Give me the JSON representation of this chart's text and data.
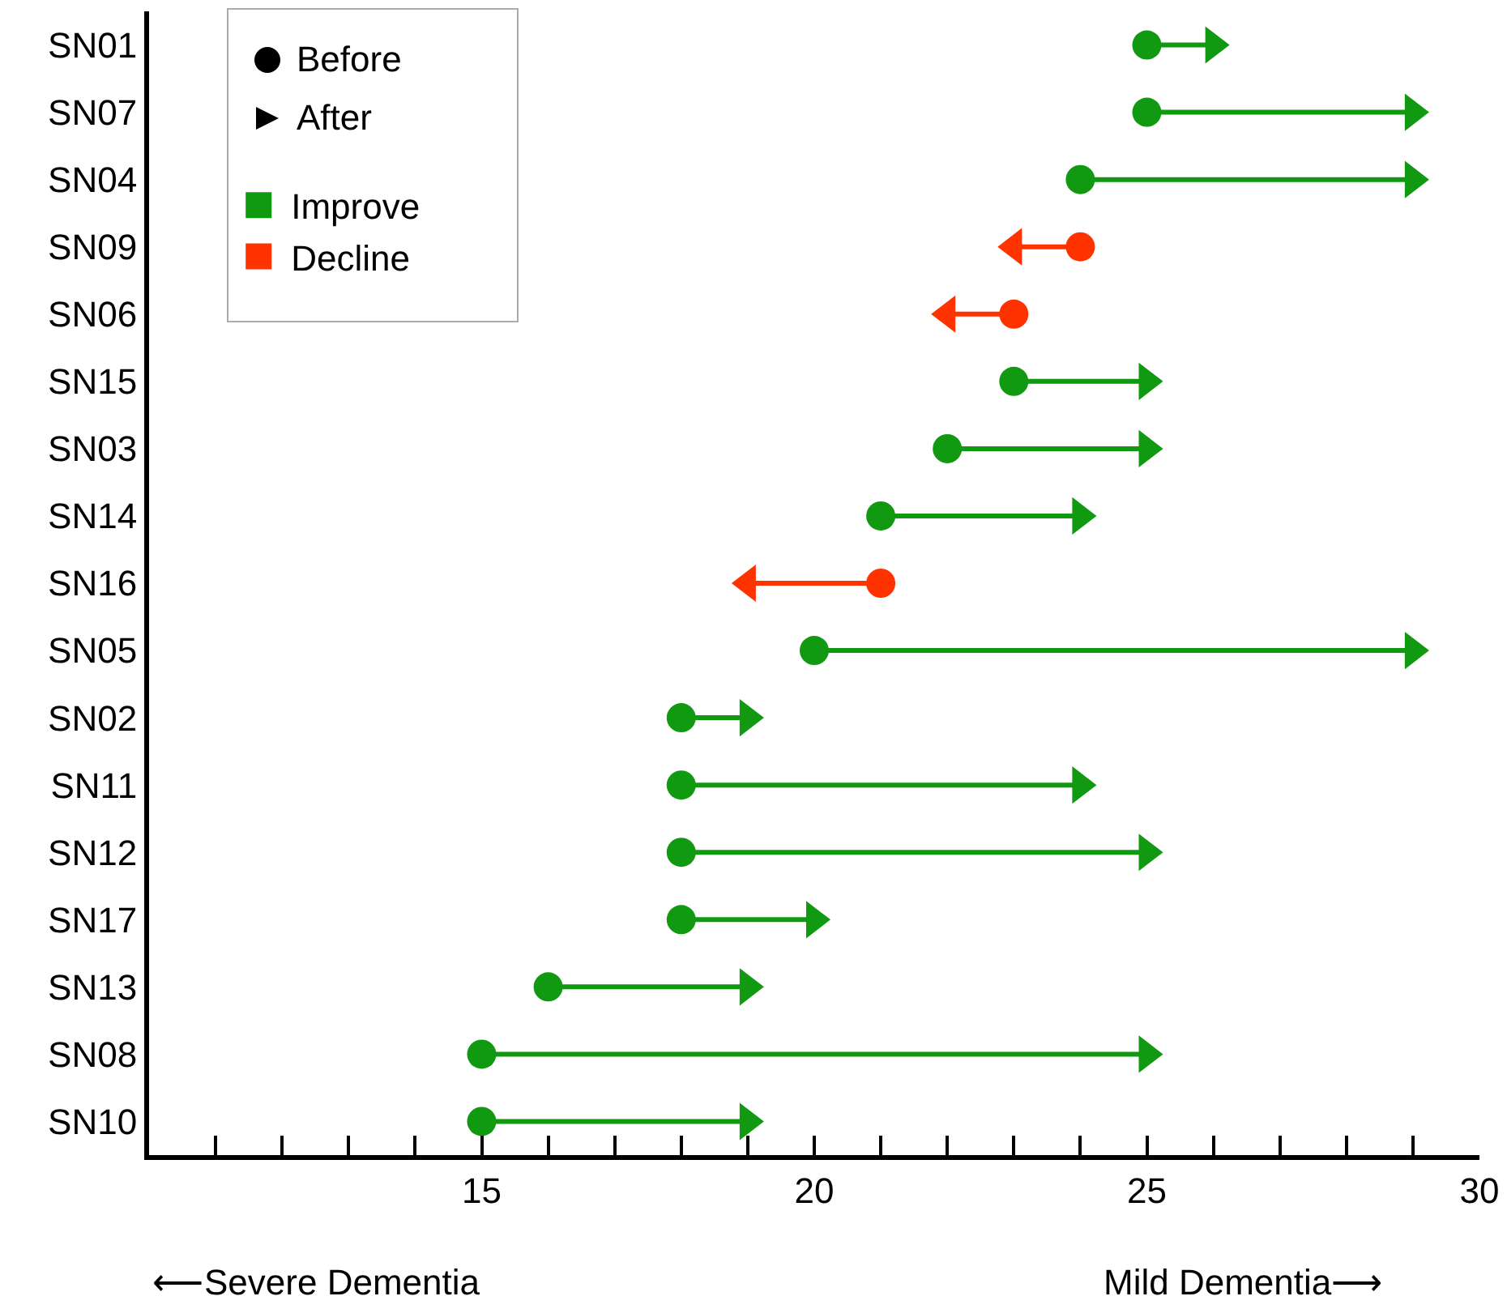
{
  "chart_data": {
    "type": "scatter",
    "orientation": "horizontal",
    "categories": [
      "SN01",
      "SN07",
      "SN04",
      "SN09",
      "SN06",
      "SN15",
      "SN03",
      "SN14",
      "SN16",
      "SN05",
      "SN02",
      "SN11",
      "SN12",
      "SN17",
      "SN13",
      "SN08",
      "SN10"
    ],
    "series": [
      {
        "name": "Improve",
        "color": "#119911",
        "marker": "circle",
        "values": [
          25,
          25,
          24,
          null,
          null,
          23,
          22,
          21,
          null,
          20,
          18,
          18,
          18,
          18,
          16,
          15,
          15
        ]
      },
      {
        "color": "#119911",
        "marker": "triangle",
        "values": [
          26,
          29,
          29,
          null,
          null,
          25,
          25,
          24,
          null,
          29,
          19,
          24,
          25,
          20,
          19,
          25,
          19
        ]
      },
      {
        "name": "Decline",
        "color": "#ff3300",
        "marker": "circle",
        "values": [
          null,
          null,
          null,
          24,
          23,
          null,
          null,
          null,
          21,
          null,
          null,
          null,
          null,
          null,
          null,
          null,
          null
        ]
      },
      {
        "color": "#ff3300",
        "marker": "triangle",
        "values": [
          null,
          null,
          null,
          23,
          22,
          null,
          null,
          null,
          19,
          null,
          null,
          null,
          null,
          null,
          null,
          null,
          null
        ]
      }
    ],
    "xlim": [
      10,
      30
    ],
    "xticks": [
      {
        "value": 11,
        "label": null
      },
      {
        "value": 12,
        "label": null
      },
      {
        "value": 13,
        "label": null
      },
      {
        "value": 14,
        "label": null
      },
      15,
      {
        "value": 16,
        "label": null
      },
      {
        "value": 17,
        "label": null
      },
      {
        "value": 18,
        "label": null
      },
      {
        "value": 19,
        "label": null
      },
      20,
      {
        "value": 21,
        "label": null
      },
      {
        "value": 22,
        "label": null
      },
      {
        "value": 23,
        "label": null
      },
      {
        "value": 24,
        "label": null
      },
      25,
      {
        "value": 26,
        "label": null
      },
      {
        "value": 27,
        "label": null
      },
      {
        "value": 28,
        "label": null
      },
      {
        "value": 29,
        "label": null
      },
      30
    ],
    "annotations": [
      "Before",
      "After",
      "⟵Severe Dementia",
      "Mild Dementia⟶"
    ],
    "grid": false,
    "legend": "top left"
  }
}
